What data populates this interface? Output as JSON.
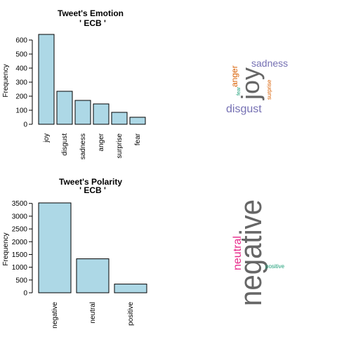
{
  "chart_data": [
    {
      "type": "bar",
      "title": "Tweet's Emotion",
      "subtitle": "' ECB '",
      "xlabel": "",
      "ylabel": "Frequency",
      "categories": [
        "joy",
        "disgust",
        "sadness",
        "anger",
        "surprise",
        "fear"
      ],
      "values": [
        640,
        235,
        170,
        145,
        85,
        50
      ],
      "ylim": [
        0,
        640
      ],
      "yticks": [
        0,
        100,
        200,
        300,
        400,
        500,
        600
      ],
      "bar_color": "#add8e6"
    },
    {
      "type": "bar",
      "title": "Tweet's Polarity",
      "subtitle": "' ECB '",
      "xlabel": "",
      "ylabel": "Frequency",
      "categories": [
        "negative",
        "neutral",
        "positive"
      ],
      "values": [
        3520,
        1330,
        340
      ],
      "ylim": [
        0,
        3520
      ],
      "yticks": [
        0,
        500,
        1000,
        1500,
        2000,
        2500,
        3000,
        3500
      ],
      "bar_color": "#add8e6"
    }
  ],
  "wordclouds": [
    {
      "words": [
        {
          "text": "joy",
          "color": "#666666"
        },
        {
          "text": "disgust",
          "color": "#7570b3"
        },
        {
          "text": "sadness",
          "color": "#7570b3"
        },
        {
          "text": "anger",
          "color": "#d95f02"
        },
        {
          "text": "surprise",
          "color": "#d95f02"
        },
        {
          "text": "fear",
          "color": "#1b9e77"
        }
      ]
    },
    {
      "words": [
        {
          "text": "negative",
          "color": "#666666"
        },
        {
          "text": "neutral",
          "color": "#e7298a"
        },
        {
          "text": "positive",
          "color": "#1b9e77"
        }
      ]
    }
  ]
}
